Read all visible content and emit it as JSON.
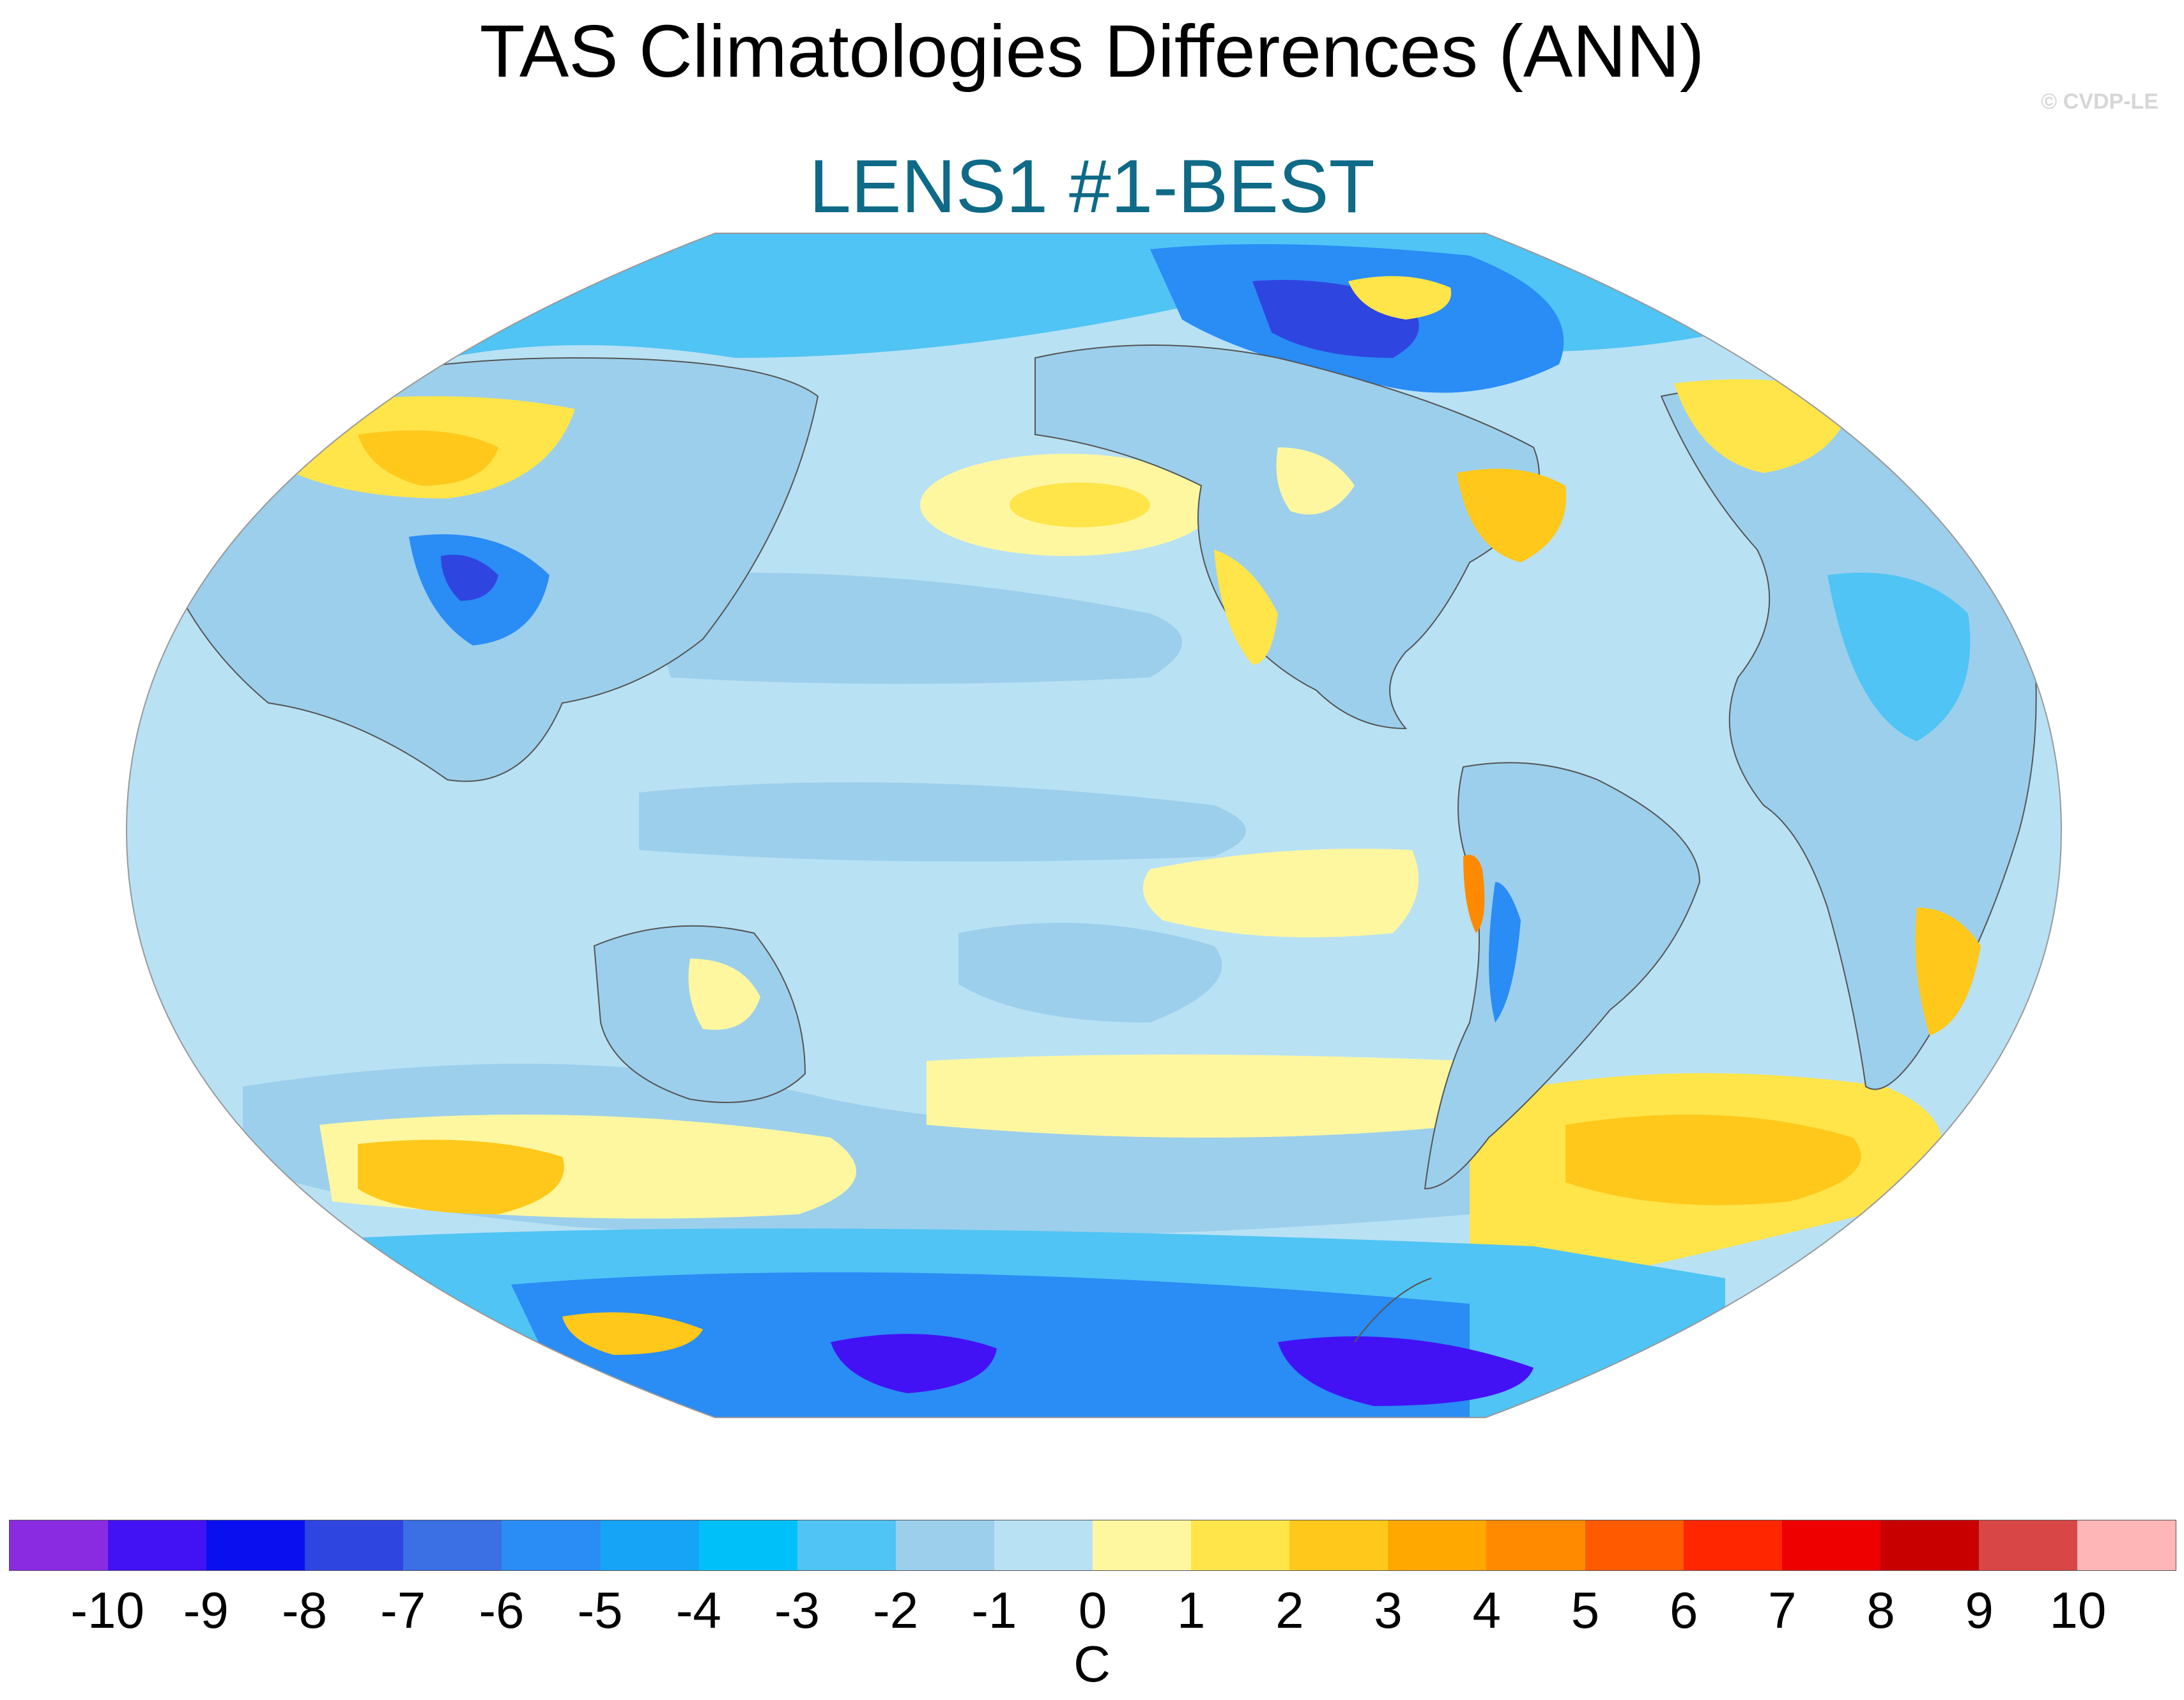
{
  "title": "TAS Climatologies Differences (ANN)",
  "subtitle": "LENS1 #1-BEST",
  "copyright": "© CVDP-LE",
  "colors": {
    "subtitle": "#0e6a87",
    "ocean_base": "#b8e1f4",
    "continent_outline": "#555555"
  },
  "colorbar": {
    "units": "C",
    "colors": [
      "#8a2be2",
      "#4212f5",
      "#0a0ff0",
      "#2f45e0",
      "#3b6fe4",
      "#2a8cf5",
      "#16a4f7",
      "#00c0fa",
      "#50c4f4",
      "#9ccfec",
      "#b8e1f4",
      "#fff7a0",
      "#ffe44a",
      "#ffc81a",
      "#ffa800",
      "#ff8a00",
      "#ff5a00",
      "#ff2600",
      "#ee0000",
      "#c80000",
      "#d84646",
      "#ffb6b6"
    ],
    "labels": [
      "-10",
      "-9",
      "-8",
      "-7",
      "-6",
      "-5",
      "-4",
      "-3",
      "-2",
      "-1",
      "0",
      "1",
      "2",
      "3",
      "4",
      "5",
      "6",
      "7",
      "8",
      "9",
      "10"
    ]
  }
}
